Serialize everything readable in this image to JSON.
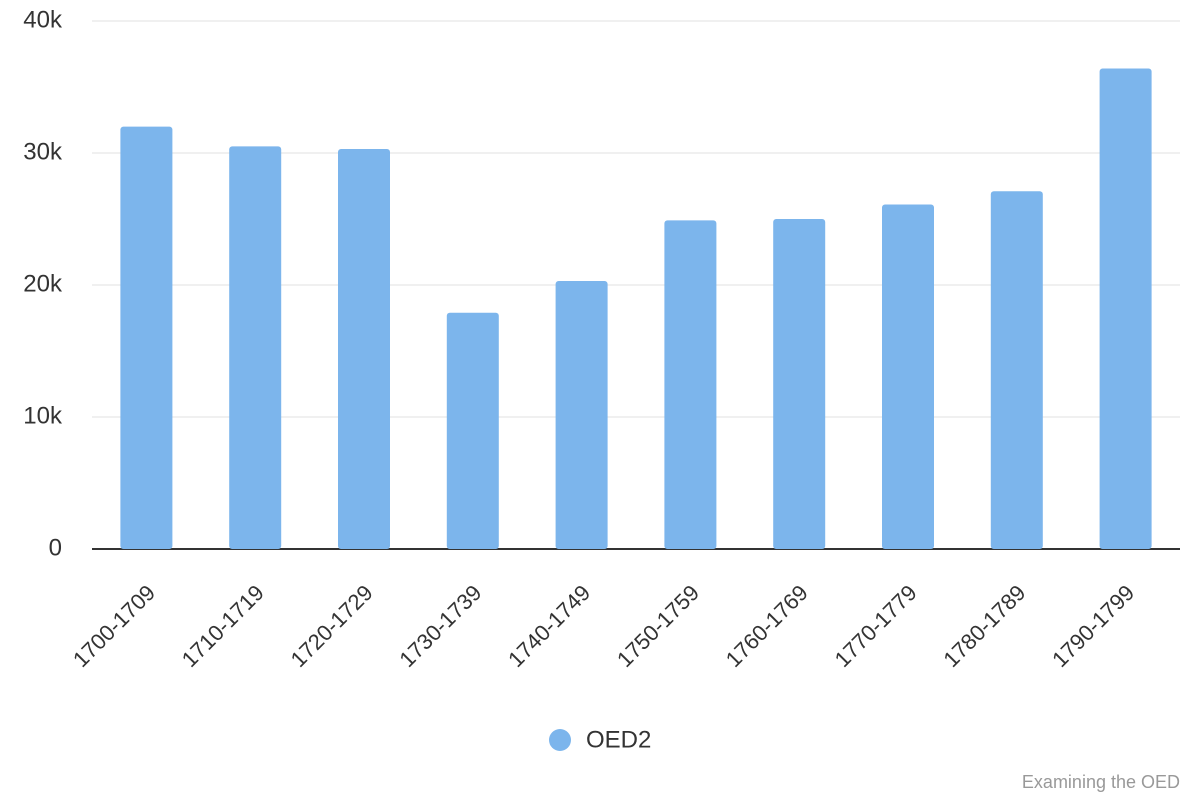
{
  "chart_data": {
    "type": "bar",
    "categories": [
      "1700-1709",
      "1710-1719",
      "1720-1729",
      "1730-1739",
      "1740-1749",
      "1750-1759",
      "1760-1769",
      "1770-1779",
      "1780-1789",
      "1790-1799"
    ],
    "series": [
      {
        "name": "OED2",
        "color": "#7cb5ec",
        "values": [
          32000,
          30500,
          30300,
          17900,
          20300,
          24900,
          25000,
          26100,
          27100,
          36400
        ]
      }
    ],
    "ylim": [
      0,
      40000
    ],
    "yticks": [
      0,
      {
        "value": 10000,
        "label": "10k"
      },
      {
        "value": 20000,
        "label": "20k"
      },
      {
        "value": 30000,
        "label": "30k"
      },
      {
        "value": 40000,
        "label": "40k"
      }
    ],
    "grid": true,
    "legend": "bottom",
    "credits": "Examining the OED"
  }
}
